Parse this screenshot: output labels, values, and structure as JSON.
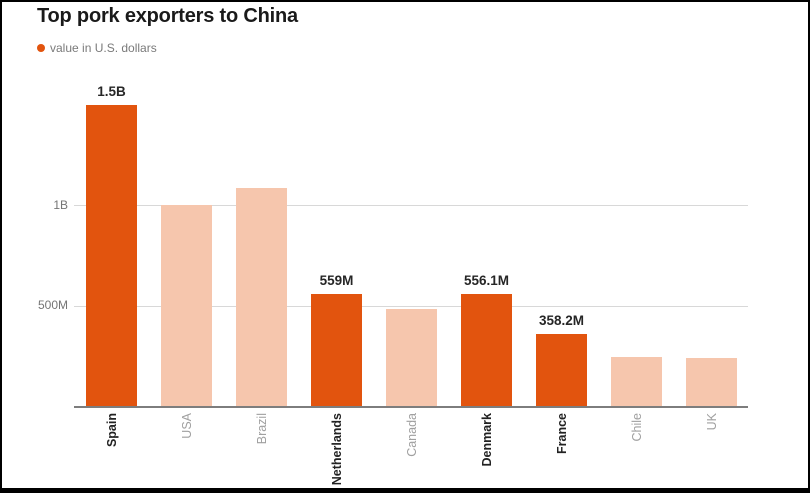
{
  "header": {
    "title": "Top pork exporters to China",
    "legend_label": "value in U.S. dollars"
  },
  "colors": {
    "bar_highlight": "#e2540e",
    "bar_muted": "#f6c6ad",
    "legend_dot": "#e2540e",
    "title_text": "#1a1a1a",
    "axis_text": "#757575",
    "gridline": "#d8d8d8",
    "axis_line": "#7d7d7d",
    "value_label_text": "#262626",
    "muted_label_text": "#a0a0a0"
  },
  "chart_data": {
    "type": "bar",
    "title": "Top pork exporters to China",
    "legend": [
      "value in U.S. dollars"
    ],
    "unit": "U.S. dollars",
    "categories": [
      "Spain",
      "USA",
      "Brazil",
      "Netherlands",
      "Canada",
      "Denmark",
      "France",
      "Chile",
      "UK"
    ],
    "values_millions": [
      1500,
      1000,
      1085,
      559,
      485,
      556.1,
      358.2,
      245,
      240
    ],
    "bar_value_labels": [
      "1.5B",
      null,
      null,
      "559M",
      null,
      "556.1M",
      "358.2M",
      null,
      null
    ],
    "highlighted": [
      true,
      false,
      false,
      true,
      false,
      true,
      true,
      false,
      false
    ],
    "y_ticks": [
      {
        "label": "500M",
        "value": 500
      },
      {
        "label": "1B",
        "value": 1000
      }
    ],
    "ylim": [
      0,
      1560
    ],
    "grid": "horizontal",
    "legend_position": "top-left",
    "xlabel": "",
    "ylabel": ""
  }
}
